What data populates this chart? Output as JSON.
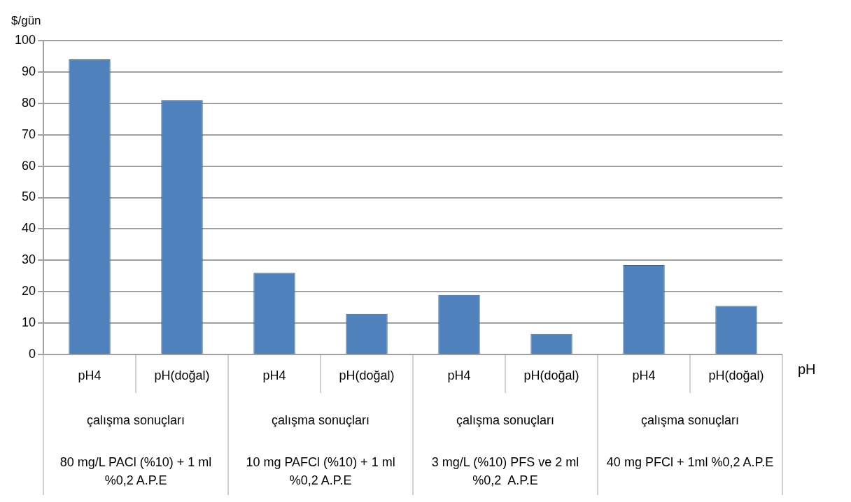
{
  "chart_data": {
    "type": "bar",
    "ylabel": "$/gün",
    "xlabel": "pH",
    "categories": [
      "pH4",
      "pH(doğal)",
      "pH4",
      "pH(doğal)",
      "pH4",
      "pH(doğal)",
      "pH4",
      "pH(doğal)"
    ],
    "values": [
      94,
      81,
      26,
      13,
      19,
      6.5,
      28.5,
      15.5
    ],
    "color": "#4f81bd",
    "ylim": [
      0,
      100
    ],
    "yticks": [
      0,
      10,
      20,
      30,
      40,
      50,
      60,
      70,
      80,
      90,
      100
    ],
    "grid": "y",
    "legend": false,
    "annotations": [
      "çalışma sonuçları",
      "çalışma sonuçları",
      "çalışma sonuçları",
      "çalışma sonuçları",
      "80 mg/L PACl (%10) + 1 ml %0,2 A.P.E",
      "10 mg PAFCl (%10) + 1 ml %0,2 A.P.E",
      "3 mg/L (%10) PFS ve 2 ml %0,2  A.P.E",
      "40 mg PFCl + 1ml %0,2 A.P.E"
    ]
  }
}
